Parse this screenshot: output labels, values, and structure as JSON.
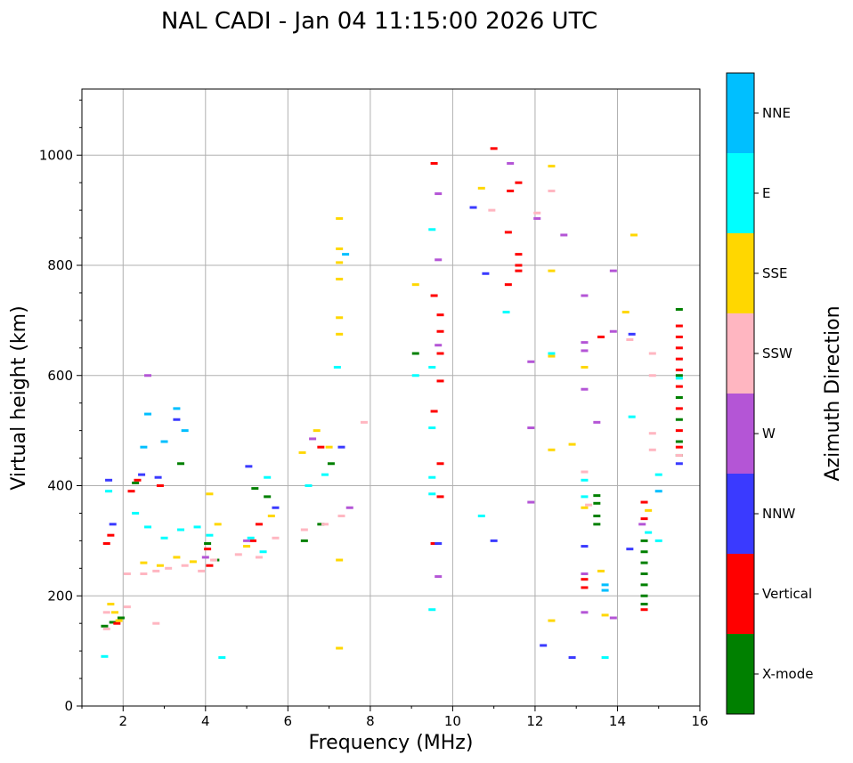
{
  "chart_data": {
    "type": "scatter",
    "title": "NAL CADI - Jan 04 11:15:00 2026 UTC",
    "xlabel": "Frequency (MHz)",
    "ylabel": "Virtual height (km)",
    "xlim": [
      1,
      16
    ],
    "ylim": [
      0,
      1120
    ],
    "xticks": [
      2,
      4,
      6,
      8,
      10,
      12,
      14,
      16
    ],
    "xtick_labels": [
      "2",
      "4",
      "6",
      "8",
      "10",
      "12",
      "14",
      "16"
    ],
    "yticks": [
      0,
      200,
      400,
      600,
      800,
      1000
    ],
    "ytick_labels": [
      "0",
      "200",
      "400",
      "600",
      "800",
      "1000"
    ],
    "grid": true,
    "colorbar": {
      "title": "Azimuth Direction",
      "categories": [
        "X-mode",
        "Vertical",
        "NNW",
        "W",
        "SSW",
        "SSE",
        "E",
        "NNE"
      ],
      "colors": [
        "#008000",
        "#ff0000",
        "#3a3aff",
        "#b455d6",
        "#ffb6c1",
        "#ffd700",
        "#00ffff",
        "#00bfff"
      ]
    },
    "series": [
      {
        "name": "X-mode",
        "points": [
          [
            1.55,
            145
          ],
          [
            1.75,
            152
          ],
          [
            1.95,
            160
          ],
          [
            2.3,
            405
          ],
          [
            3.4,
            440
          ],
          [
            4.05,
            295
          ],
          [
            4.25,
            265
          ],
          [
            5.2,
            395
          ],
          [
            5.5,
            380
          ],
          [
            6.4,
            300
          ],
          [
            6.8,
            330
          ],
          [
            7.05,
            440
          ],
          [
            9.1,
            640
          ],
          [
            13.5,
            382
          ],
          [
            13.5,
            368
          ],
          [
            13.5,
            345
          ],
          [
            13.5,
            330
          ],
          [
            14.65,
            300
          ],
          [
            14.65,
            280
          ],
          [
            14.65,
            260
          ],
          [
            14.65,
            240
          ],
          [
            14.65,
            220
          ],
          [
            14.65,
            200
          ],
          [
            14.65,
            185
          ],
          [
            15.5,
            720
          ],
          [
            15.5,
            600
          ],
          [
            15.5,
            560
          ],
          [
            15.5,
            520
          ],
          [
            15.5,
            480
          ],
          [
            15.5,
            455
          ]
        ]
      },
      {
        "name": "Vertical",
        "points": [
          [
            1.6,
            295
          ],
          [
            1.7,
            310
          ],
          [
            1.85,
            150
          ],
          [
            2.2,
            390
          ],
          [
            2.35,
            410
          ],
          [
            2.9,
            400
          ],
          [
            4.05,
            285
          ],
          [
            4.1,
            255
          ],
          [
            5.15,
            300
          ],
          [
            5.3,
            330
          ],
          [
            6.8,
            470
          ],
          [
            9.55,
            985
          ],
          [
            9.55,
            745
          ],
          [
            9.55,
            535
          ],
          [
            9.55,
            295
          ],
          [
            9.7,
            710
          ],
          [
            9.7,
            680
          ],
          [
            9.7,
            640
          ],
          [
            9.7,
            590
          ],
          [
            9.7,
            440
          ],
          [
            9.7,
            380
          ],
          [
            11.0,
            1012
          ],
          [
            11.4,
            935
          ],
          [
            11.35,
            860
          ],
          [
            11.35,
            765
          ],
          [
            11.6,
            950
          ],
          [
            11.6,
            820
          ],
          [
            11.6,
            800
          ],
          [
            11.6,
            790
          ],
          [
            13.2,
            230
          ],
          [
            13.2,
            215
          ],
          [
            13.6,
            670
          ],
          [
            14.65,
            370
          ],
          [
            14.65,
            340
          ],
          [
            14.65,
            175
          ],
          [
            15.5,
            690
          ],
          [
            15.5,
            670
          ],
          [
            15.5,
            650
          ],
          [
            15.5,
            630
          ],
          [
            15.5,
            610
          ],
          [
            15.5,
            580
          ],
          [
            15.5,
            540
          ],
          [
            15.5,
            500
          ],
          [
            15.5,
            470
          ]
        ]
      },
      {
        "name": "NNW",
        "points": [
          [
            1.65,
            410
          ],
          [
            1.75,
            330
          ],
          [
            2.45,
            420
          ],
          [
            2.85,
            415
          ],
          [
            3.3,
            520
          ],
          [
            5.05,
            435
          ],
          [
            5.7,
            360
          ],
          [
            7.3,
            470
          ],
          [
            9.65,
            295
          ],
          [
            10.5,
            905
          ],
          [
            10.8,
            785
          ],
          [
            11.0,
            300
          ],
          [
            12.2,
            110
          ],
          [
            12.9,
            88
          ],
          [
            13.2,
            290
          ],
          [
            14.3,
            285
          ],
          [
            14.35,
            675
          ],
          [
            15.5,
            440
          ]
        ]
      },
      {
        "name": "W",
        "points": [
          [
            2.6,
            600
          ],
          [
            4.0,
            270
          ],
          [
            5.0,
            300
          ],
          [
            6.6,
            485
          ],
          [
            7.5,
            360
          ],
          [
            9.65,
            930
          ],
          [
            9.65,
            810
          ],
          [
            9.65,
            655
          ],
          [
            9.65,
            235
          ],
          [
            11.4,
            985
          ],
          [
            11.9,
            625
          ],
          [
            11.9,
            505
          ],
          [
            11.9,
            370
          ],
          [
            12.05,
            885
          ],
          [
            12.7,
            855
          ],
          [
            13.2,
            745
          ],
          [
            13.2,
            660
          ],
          [
            13.2,
            645
          ],
          [
            13.2,
            575
          ],
          [
            13.2,
            240
          ],
          [
            13.2,
            170
          ],
          [
            13.5,
            515
          ],
          [
            13.9,
            790
          ],
          [
            13.9,
            680
          ],
          [
            13.9,
            160
          ],
          [
            14.6,
            330
          ]
        ]
      },
      {
        "name": "SSW",
        "points": [
          [
            1.6,
            170
          ],
          [
            1.6,
            140
          ],
          [
            2.1,
            180
          ],
          [
            2.1,
            240
          ],
          [
            2.5,
            240
          ],
          [
            2.8,
            245
          ],
          [
            3.1,
            250
          ],
          [
            3.5,
            255
          ],
          [
            3.9,
            245
          ],
          [
            4.2,
            265
          ],
          [
            2.8,
            150
          ],
          [
            4.8,
            275
          ],
          [
            5.3,
            270
          ],
          [
            5.7,
            305
          ],
          [
            6.4,
            320
          ],
          [
            6.9,
            330
          ],
          [
            7.3,
            345
          ],
          [
            7.85,
            515
          ],
          [
            10.95,
            900
          ],
          [
            12.4,
            935
          ],
          [
            12.05,
            895
          ],
          [
            13.2,
            425
          ],
          [
            13.3,
            365
          ],
          [
            14.3,
            665
          ],
          [
            14.85,
            640
          ],
          [
            14.85,
            600
          ],
          [
            14.85,
            495
          ],
          [
            14.85,
            465
          ],
          [
            15.5,
            455
          ]
        ]
      },
      {
        "name": "SSE",
        "points": [
          [
            1.7,
            185
          ],
          [
            1.8,
            170
          ],
          [
            1.9,
            155
          ],
          [
            2.5,
            260
          ],
          [
            2.9,
            255
          ],
          [
            3.3,
            270
          ],
          [
            3.7,
            262
          ],
          [
            4.1,
            385
          ],
          [
            4.3,
            330
          ],
          [
            5.0,
            290
          ],
          [
            5.6,
            345
          ],
          [
            6.35,
            460
          ],
          [
            6.7,
            500
          ],
          [
            7.0,
            470
          ],
          [
            7.25,
            885
          ],
          [
            7.25,
            830
          ],
          [
            7.25,
            805
          ],
          [
            7.25,
            775
          ],
          [
            7.25,
            705
          ],
          [
            7.25,
            675
          ],
          [
            7.25,
            265
          ],
          [
            7.25,
            105
          ],
          [
            9.1,
            765
          ],
          [
            10.7,
            940
          ],
          [
            12.4,
            980
          ],
          [
            12.4,
            790
          ],
          [
            12.4,
            635
          ],
          [
            12.4,
            465
          ],
          [
            12.4,
            155
          ],
          [
            12.9,
            475
          ],
          [
            13.2,
            615
          ],
          [
            13.2,
            360
          ],
          [
            13.6,
            245
          ],
          [
            13.7,
            165
          ],
          [
            14.2,
            715
          ],
          [
            14.4,
            855
          ],
          [
            14.75,
            355
          ]
        ]
      },
      {
        "name": "E",
        "points": [
          [
            1.55,
            90
          ],
          [
            1.65,
            390
          ],
          [
            2.3,
            350
          ],
          [
            2.6,
            325
          ],
          [
            3.0,
            305
          ],
          [
            3.4,
            320
          ],
          [
            3.8,
            325
          ],
          [
            4.1,
            310
          ],
          [
            4.4,
            88
          ],
          [
            5.1,
            305
          ],
          [
            5.4,
            280
          ],
          [
            5.5,
            415
          ],
          [
            6.5,
            400
          ],
          [
            6.9,
            420
          ],
          [
            7.2,
            615
          ],
          [
            9.1,
            600
          ],
          [
            9.5,
            865
          ],
          [
            9.5,
            615
          ],
          [
            9.5,
            505
          ],
          [
            9.5,
            415
          ],
          [
            9.5,
            385
          ],
          [
            9.5,
            175
          ],
          [
            10.7,
            345
          ],
          [
            11.3,
            715
          ],
          [
            12.4,
            640
          ],
          [
            13.2,
            410
          ],
          [
            13.2,
            380
          ],
          [
            13.7,
            88
          ],
          [
            14.35,
            525
          ],
          [
            14.75,
            315
          ],
          [
            15.0,
            420
          ],
          [
            15.0,
            300
          ],
          [
            15.5,
            595
          ]
        ]
      },
      {
        "name": "NNE",
        "points": [
          [
            2.6,
            530
          ],
          [
            3.3,
            540
          ],
          [
            3.5,
            500
          ],
          [
            2.5,
            470
          ],
          [
            3.0,
            480
          ],
          [
            7.4,
            820
          ],
          [
            13.7,
            210
          ],
          [
            13.7,
            220
          ],
          [
            15.0,
            390
          ]
        ]
      }
    ]
  }
}
